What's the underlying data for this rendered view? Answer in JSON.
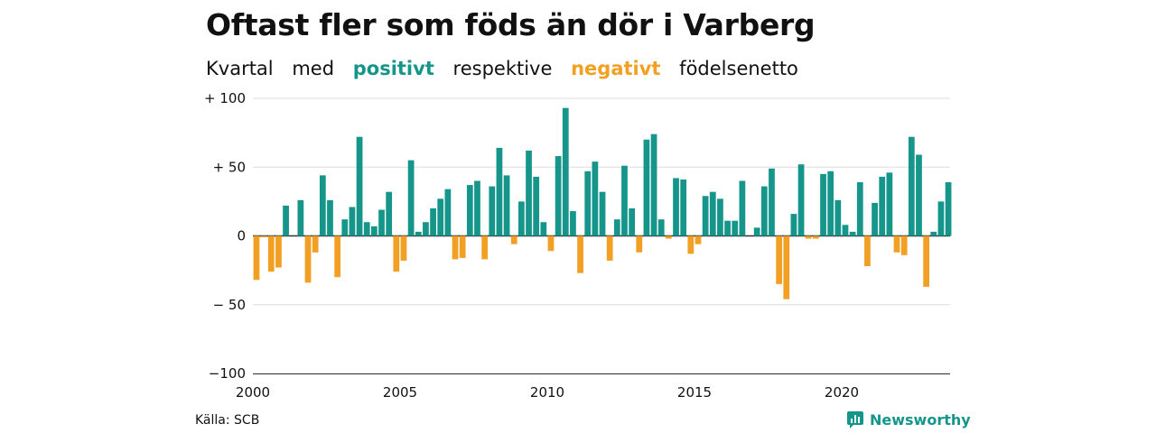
{
  "header": {
    "title": "Oftast fler som föds än dör i Varberg",
    "subtitle": {
      "part1": "Kvartal",
      "part2": "med",
      "positive_word": "positivt",
      "part3": "respektive",
      "negative_word": "negativt",
      "part4": "födelsenetto"
    }
  },
  "footer": {
    "source": "Källa: SCB",
    "brand": "Newsworthy"
  },
  "colors": {
    "positive": "#16968a",
    "negative": "#f2a023",
    "grid": "#dddddd",
    "axis": "#333333"
  },
  "chart_data": {
    "type": "bar",
    "x_start": 2000,
    "periods_per_year": 4,
    "ylim": [
      -100,
      100
    ],
    "y_ticks": [
      100,
      50,
      0,
      -50,
      -100
    ],
    "y_tick_labels": [
      "+ 100",
      "+  50",
      "0",
      "− 50",
      "−100"
    ],
    "x_ticks": [
      2000,
      2005,
      2010,
      2015,
      2020
    ],
    "grid": true,
    "values": [
      -32,
      -1,
      -26,
      -23,
      22,
      0,
      26,
      -34,
      -12,
      44,
      26,
      -30,
      12,
      21,
      72,
      10,
      7,
      19,
      32,
      -26,
      -18,
      55,
      3,
      10,
      20,
      27,
      34,
      -17,
      -16,
      37,
      40,
      -17,
      36,
      64,
      44,
      -6,
      25,
      62,
      43,
      10,
      -11,
      58,
      93,
      18,
      -27,
      47,
      54,
      32,
      -18,
      12,
      51,
      20,
      -12,
      70,
      74,
      12,
      -2,
      42,
      41,
      -13,
      -6,
      29,
      32,
      27,
      11,
      11,
      40,
      0,
      6,
      36,
      49,
      -35,
      -46,
      16,
      52,
      -2,
      -2,
      45,
      47,
      26,
      8,
      3,
      39,
      -22,
      24,
      43,
      46,
      -12,
      -14,
      72,
      59,
      -37,
      3,
      25,
      39
    ]
  }
}
